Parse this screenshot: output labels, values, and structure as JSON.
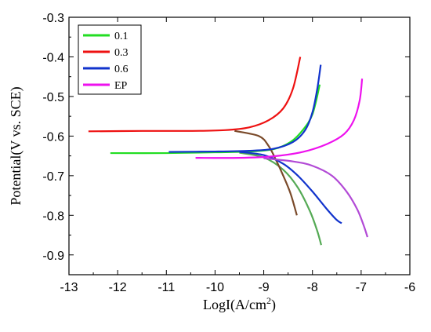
{
  "chart_data": {
    "type": "line",
    "title": "",
    "xlabel": "LogI(A/cm",
    "xlabel_superscript": "2",
    "xlabel_suffix": ")",
    "ylabel": "Potential(V vs. SCE)",
    "xlim": [
      -13,
      -6
    ],
    "ylim": [
      -0.3,
      -0.95
    ],
    "y_inverted": true,
    "x_ticks": [
      -13,
      -12,
      -11,
      -10,
      -9,
      -8,
      -7,
      -6
    ],
    "x_tick_labels": [
      "-13",
      "-12",
      "-11",
      "-10",
      "-9",
      "-8",
      "-7",
      "-6"
    ],
    "y_ticks": [
      -0.3,
      -0.4,
      -0.5,
      -0.6,
      -0.7,
      -0.8,
      -0.9
    ],
    "y_tick_labels": [
      "-0.3",
      "-0.4",
      "-0.5",
      "-0.6",
      "-0.7",
      "-0.8",
      "-0.9"
    ],
    "grid": false,
    "legend_position": "top-left",
    "series": [
      {
        "name": "0.1",
        "color": "#22dd22",
        "points": [
          [
            -12.15,
            -0.643
          ],
          [
            -11.0,
            -0.643
          ],
          [
            -10.0,
            -0.641
          ],
          [
            -9.3,
            -0.639
          ],
          [
            -8.8,
            -0.633
          ],
          [
            -8.45,
            -0.615
          ],
          [
            -8.2,
            -0.585
          ],
          [
            -8.0,
            -0.545
          ],
          [
            -7.85,
            -0.47
          ]
        ],
        "cathodic_points": [
          [
            -9.5,
            -0.642
          ],
          [
            -9.0,
            -0.654
          ],
          [
            -8.6,
            -0.685
          ],
          [
            -8.3,
            -0.73
          ],
          [
            -8.05,
            -0.79
          ],
          [
            -7.9,
            -0.84
          ],
          [
            -7.82,
            -0.875
          ]
        ]
      },
      {
        "name": "0.3",
        "color": "#ee1111",
        "points": [
          [
            -12.6,
            -0.588
          ],
          [
            -11.5,
            -0.587
          ],
          [
            -10.5,
            -0.587
          ],
          [
            -9.8,
            -0.585
          ],
          [
            -9.3,
            -0.578
          ],
          [
            -8.9,
            -0.56
          ],
          [
            -8.6,
            -0.53
          ],
          [
            -8.4,
            -0.48
          ],
          [
            -8.25,
            -0.4
          ]
        ],
        "cathodic_points": [
          [
            -9.6,
            -0.587
          ],
          [
            -9.1,
            -0.6
          ],
          [
            -8.9,
            -0.625
          ],
          [
            -8.75,
            -0.66
          ],
          [
            -8.6,
            -0.7
          ],
          [
            -8.45,
            -0.745
          ],
          [
            -8.32,
            -0.8
          ]
        ]
      },
      {
        "name": "0.6",
        "color": "#1133cc",
        "points": [
          [
            -10.95,
            -0.64
          ],
          [
            -10.0,
            -0.639
          ],
          [
            -9.3,
            -0.637
          ],
          [
            -8.8,
            -0.632
          ],
          [
            -8.4,
            -0.615
          ],
          [
            -8.15,
            -0.585
          ],
          [
            -8.0,
            -0.54
          ],
          [
            -7.9,
            -0.48
          ],
          [
            -7.83,
            -0.42
          ]
        ],
        "cathodic_points": [
          [
            -9.5,
            -0.64
          ],
          [
            -9.0,
            -0.648
          ],
          [
            -8.6,
            -0.67
          ],
          [
            -8.3,
            -0.7
          ],
          [
            -8.0,
            -0.74
          ],
          [
            -7.7,
            -0.785
          ],
          [
            -7.5,
            -0.812
          ],
          [
            -7.4,
            -0.82
          ]
        ]
      },
      {
        "name": "EP",
        "color": "#ee11ee",
        "points": [
          [
            -10.4,
            -0.655
          ],
          [
            -9.5,
            -0.655
          ],
          [
            -8.8,
            -0.651
          ],
          [
            -8.2,
            -0.64
          ],
          [
            -7.7,
            -0.62
          ],
          [
            -7.35,
            -0.595
          ],
          [
            -7.15,
            -0.56
          ],
          [
            -7.03,
            -0.51
          ],
          [
            -6.98,
            -0.455
          ]
        ],
        "cathodic_points": [
          [
            -9.0,
            -0.656
          ],
          [
            -8.4,
            -0.664
          ],
          [
            -8.0,
            -0.675
          ],
          [
            -7.6,
            -0.7
          ],
          [
            -7.3,
            -0.74
          ],
          [
            -7.08,
            -0.785
          ],
          [
            -6.95,
            -0.825
          ],
          [
            -6.87,
            -0.855
          ]
        ]
      }
    ]
  }
}
